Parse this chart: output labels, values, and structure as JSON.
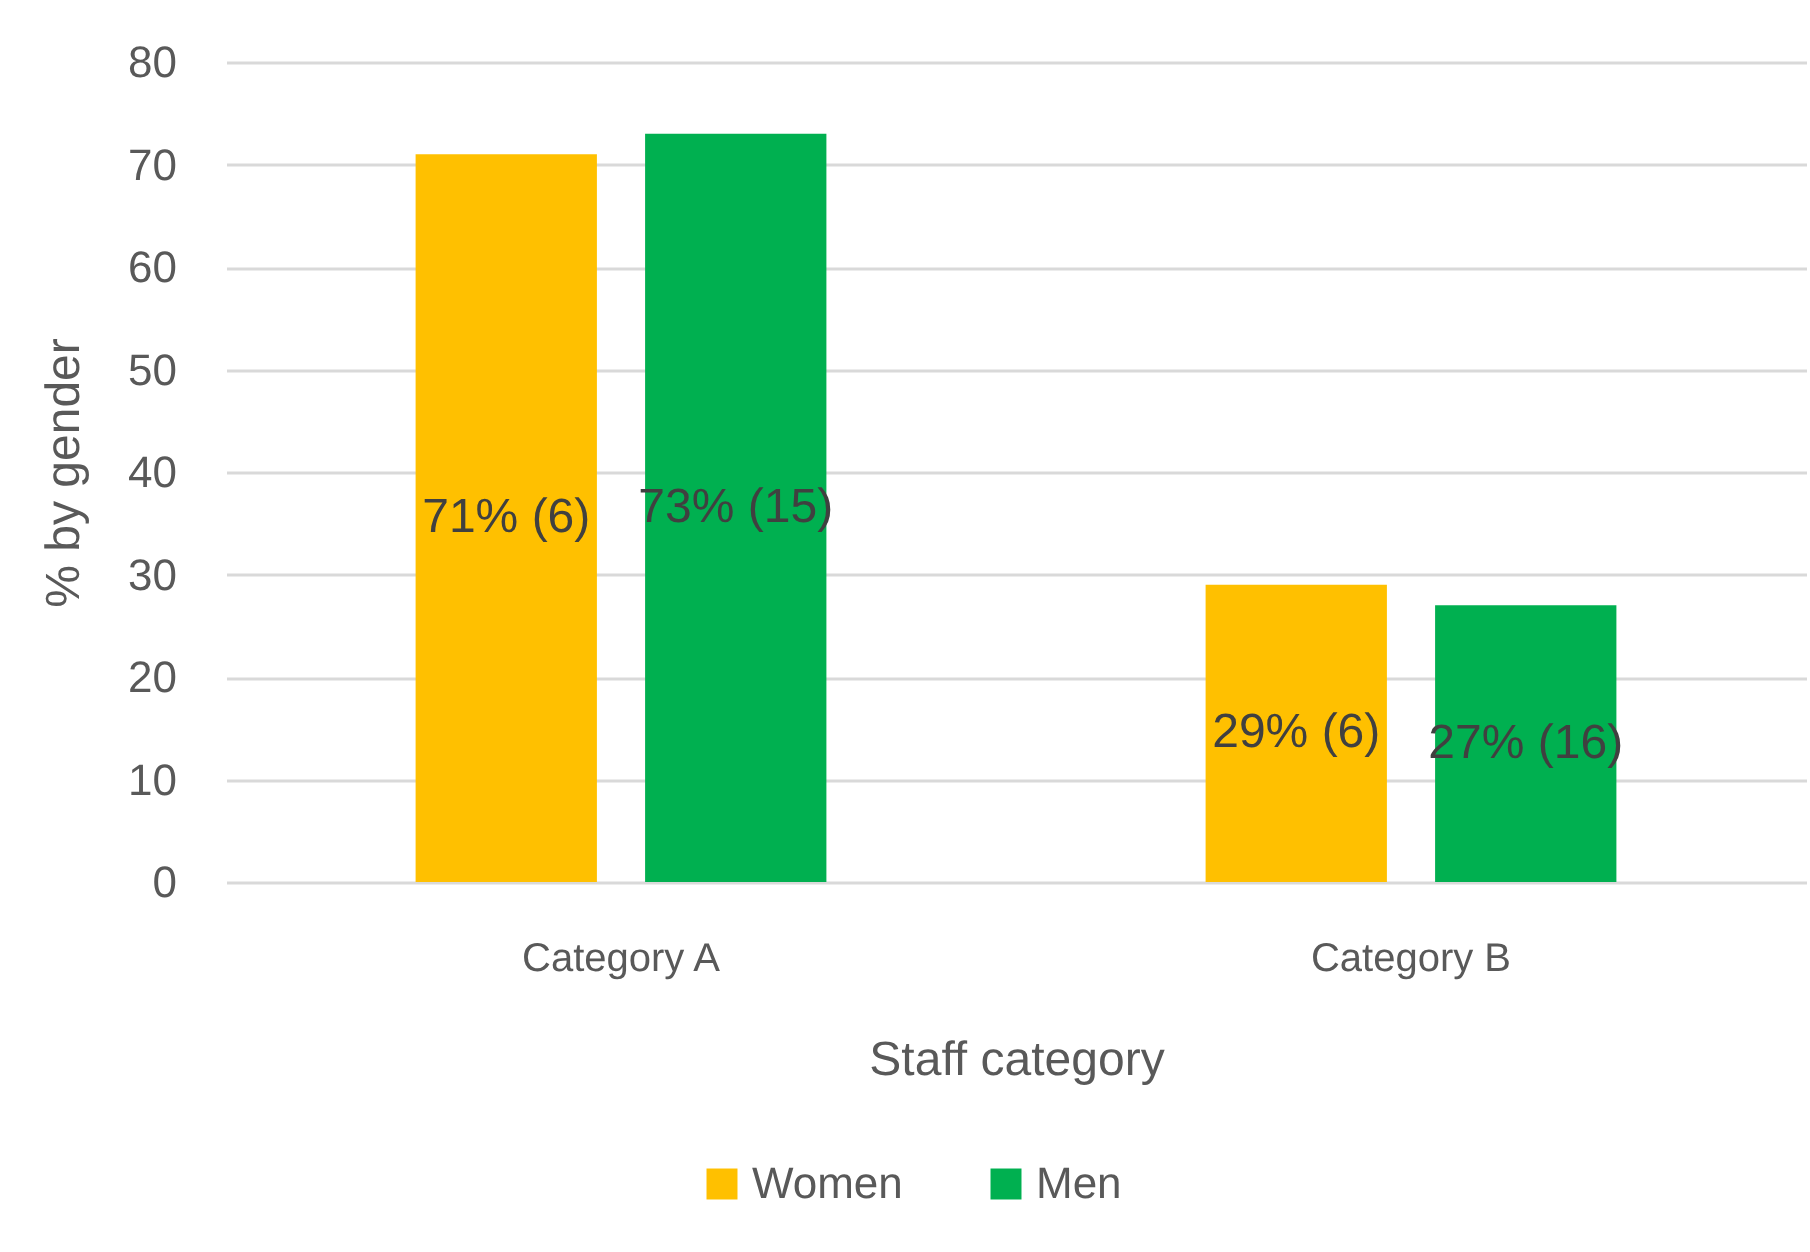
{
  "chart_data": {
    "type": "bar",
    "xlabel": "Staff category",
    "ylabel": "% by gender",
    "categories": [
      "Category A",
      "Category B"
    ],
    "series": [
      {
        "name": "Women",
        "color": "#ffc000",
        "values": [
          71,
          29
        ],
        "value_labels": [
          "71% (6)",
          "29% (6)"
        ]
      },
      {
        "name": "Men",
        "color": "#00b050",
        "values": [
          73,
          27
        ],
        "value_labels": [
          "73% (15)",
          "27% (16)"
        ]
      }
    ],
    "ylim": [
      0,
      80
    ],
    "yticks": [
      0,
      10,
      20,
      30,
      40,
      50,
      60,
      70,
      80
    ],
    "grid": "y",
    "legend": "bottom"
  }
}
